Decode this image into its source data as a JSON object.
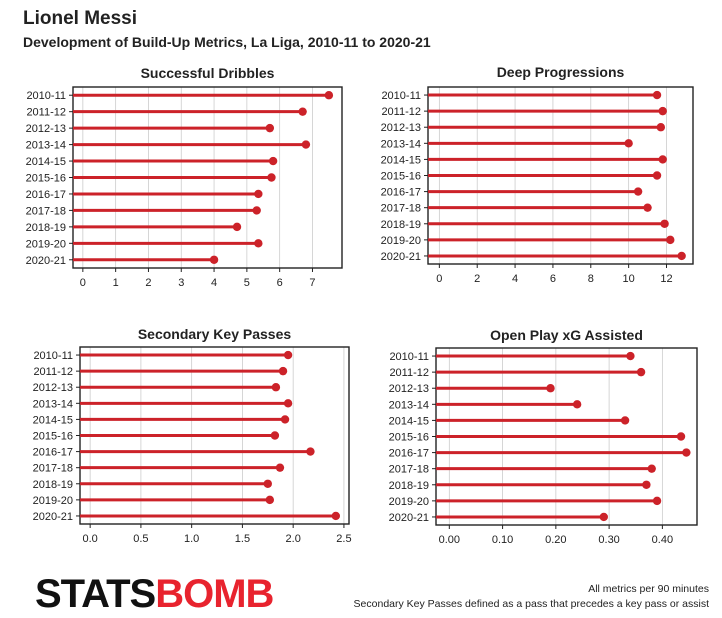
{
  "title": "Lionel Messi",
  "subtitle": "Development of Build-Up Metrics, La Liga, 2010-11 to 2020-21",
  "colors": {
    "marker": "#cc2229",
    "axis": "#222222",
    "grid": "#cccccc"
  },
  "brand": {
    "part1": "STATS",
    "part2": "BOMB"
  },
  "footnotes": [
    "All metrics per 90 minutes",
    "Secondary Key Passes defined as a pass that precedes a key pass or assist"
  ],
  "chart_data": [
    {
      "type": "lollipop",
      "title": "Successful Dribbles",
      "categories": [
        "2010-11",
        "2011-12",
        "2012-13",
        "2013-14",
        "2014-15",
        "2015-16",
        "2016-17",
        "2017-18",
        "2018-19",
        "2019-20",
        "2020-21"
      ],
      "values": [
        7.5,
        6.7,
        5.7,
        6.8,
        5.8,
        5.75,
        5.35,
        5.3,
        4.7,
        5.35,
        4.0
      ],
      "xlim": [
        -0.3,
        7.9
      ],
      "xticks": [
        "0",
        "1",
        "2",
        "3",
        "4",
        "5",
        "6",
        "7"
      ],
      "grid": true
    },
    {
      "type": "lollipop",
      "title": "Deep Progressions",
      "categories": [
        "2010-11",
        "2011-12",
        "2012-13",
        "2013-14",
        "2014-15",
        "2015-16",
        "2016-17",
        "2017-18",
        "2018-19",
        "2019-20",
        "2020-21"
      ],
      "values": [
        11.5,
        11.8,
        11.7,
        10.0,
        11.8,
        11.5,
        10.5,
        11.0,
        11.9,
        12.2,
        12.8
      ],
      "xlim": [
        -0.6,
        13.4
      ],
      "xticks": [
        "0",
        "2",
        "4",
        "6",
        "8",
        "10",
        "12"
      ],
      "grid": true
    },
    {
      "type": "lollipop",
      "title": "Secondary Key Passes",
      "categories": [
        "2010-11",
        "2011-12",
        "2012-13",
        "2013-14",
        "2014-15",
        "2015-16",
        "2016-17",
        "2017-18",
        "2018-19",
        "2019-20",
        "2020-21"
      ],
      "values": [
        1.95,
        1.9,
        1.83,
        1.95,
        1.92,
        1.82,
        2.17,
        1.87,
        1.75,
        1.77,
        2.42
      ],
      "xlim": [
        -0.1,
        2.55
      ],
      "xticks": [
        "0.0",
        "0.5",
        "1.0",
        "1.5",
        "2.0",
        "2.5"
      ],
      "grid": true
    },
    {
      "type": "lollipop",
      "title": "Open Play xG Assisted",
      "categories": [
        "2010-11",
        "2011-12",
        "2012-13",
        "2013-14",
        "2014-15",
        "2015-16",
        "2016-17",
        "2017-18",
        "2018-19",
        "2019-20",
        "2020-21"
      ],
      "values": [
        0.34,
        0.36,
        0.19,
        0.24,
        0.33,
        0.435,
        0.445,
        0.38,
        0.37,
        0.39,
        0.29
      ],
      "xlim": [
        -0.025,
        0.465
      ],
      "xticks": [
        "0.00",
        "0.10",
        "0.20",
        "0.30",
        "0.40"
      ],
      "grid": true
    }
  ]
}
